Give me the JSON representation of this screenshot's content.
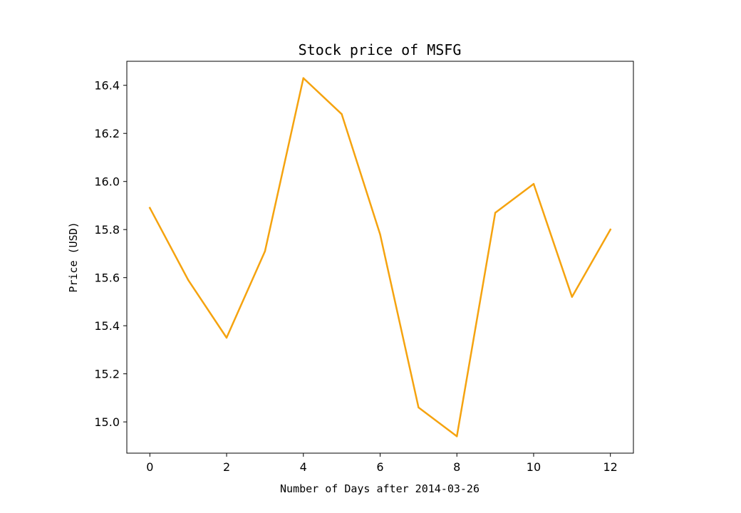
{
  "chart_data": {
    "type": "line",
    "title": "Stock price of MSFG",
    "xlabel": "Number of Days after 2014-03-26",
    "ylabel": "Price (USD)",
    "xlim": [
      -0.6,
      12.6
    ],
    "ylim": [
      14.87,
      16.5
    ],
    "x_ticks": [
      0,
      2,
      4,
      6,
      8,
      10,
      12
    ],
    "x_tick_labels": [
      "0",
      "2",
      "4",
      "6",
      "8",
      "10",
      "12"
    ],
    "y_ticks": [
      15.0,
      15.2,
      15.4,
      15.6,
      15.8,
      16.0,
      16.2,
      16.4
    ],
    "y_tick_labels": [
      "15.0",
      "15.2",
      "15.4",
      "15.6",
      "15.8",
      "16.0",
      "16.2",
      "16.4"
    ],
    "grid": false,
    "series": [
      {
        "color": "#f5a30f",
        "x": [
          0,
          1,
          2,
          3,
          4,
          5,
          6,
          7,
          8,
          9,
          10,
          11,
          12
        ],
        "values": [
          15.89,
          15.59,
          15.35,
          15.71,
          16.43,
          16.28,
          15.78,
          15.06,
          14.94,
          15.87,
          15.99,
          15.52,
          15.8
        ]
      }
    ]
  }
}
